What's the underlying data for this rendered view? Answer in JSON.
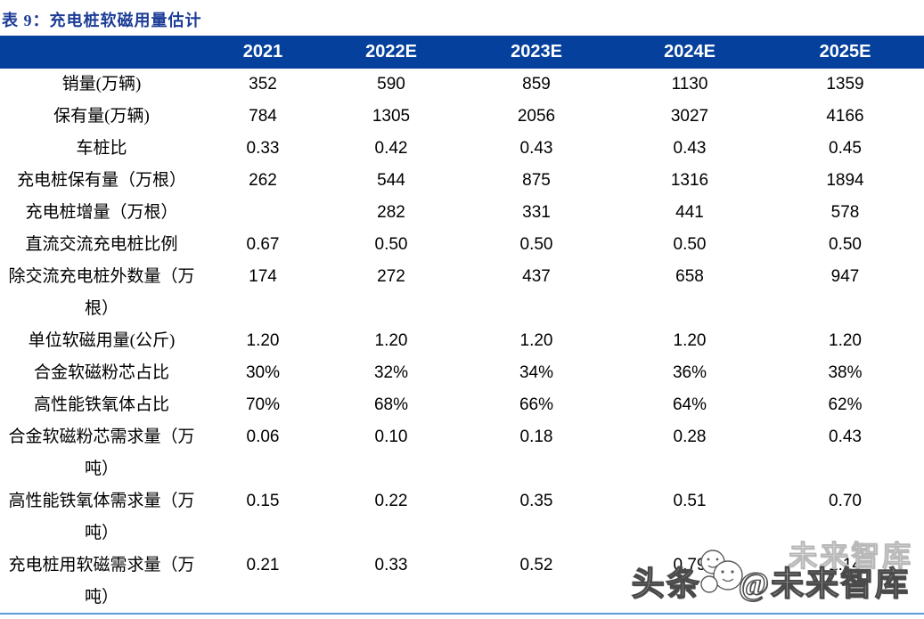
{
  "page": {
    "title": "表 9：充电桩软磁用量估计"
  },
  "table": {
    "header": [
      "2021",
      "2022E",
      "2023E",
      "2024E",
      "2025E"
    ],
    "rows": [
      {
        "label": "销量(万辆)",
        "values": [
          "352",
          "590",
          "859",
          "1130",
          "1359"
        ]
      },
      {
        "label": "保有量(万辆)",
        "values": [
          "784",
          "1305",
          "2056",
          "3027",
          "4166"
        ]
      },
      {
        "label": "车桩比",
        "values": [
          "0.33",
          "0.42",
          "0.43",
          "0.43",
          "0.45"
        ]
      },
      {
        "label": "充电桩保有量（万根）",
        "values": [
          "262",
          "544",
          "875",
          "1316",
          "1894"
        ]
      },
      {
        "label": "充电桩增量（万根）",
        "values": [
          "",
          "282",
          "331",
          "441",
          "578"
        ]
      },
      {
        "label": "直流交流充电桩比例",
        "values": [
          "0.67",
          "0.50",
          "0.50",
          "0.50",
          "0.50"
        ]
      },
      {
        "label": "除交流充电桩外数量（万根）",
        "values": [
          "174",
          "272",
          "437",
          "658",
          "947"
        ]
      },
      {
        "label": "单位软磁用量(公斤)",
        "values": [
          "1.20",
          "1.20",
          "1.20",
          "1.20",
          "1.20"
        ]
      },
      {
        "label": "合金软磁粉芯占比",
        "values": [
          "30%",
          "32%",
          "34%",
          "36%",
          "38%"
        ]
      },
      {
        "label": "高性能铁氧体占比",
        "values": [
          "70%",
          "68%",
          "66%",
          "64%",
          "62%"
        ]
      },
      {
        "label": "合金软磁粉芯需求量（万吨）",
        "values": [
          "0.06",
          "0.10",
          "0.18",
          "0.28",
          "0.43"
        ]
      },
      {
        "label": "高性能铁氧体需求量（万吨）",
        "values": [
          "0.15",
          "0.22",
          "0.35",
          "0.51",
          "0.70"
        ]
      },
      {
        "label": "充电桩用软磁需求量（万吨）",
        "values": [
          "0.21",
          "0.33",
          "0.52",
          "0.79",
          "1.14"
        ]
      }
    ]
  },
  "watermark": {
    "prefix": "头条",
    "suffix": "@未来智库",
    "ghost": "未来智库",
    "logo": "smiley-faces-logo"
  },
  "colors": {
    "title_blue": "#1c3c96",
    "header_bg": "#04409c",
    "header_text": "#ffffff",
    "bottom_rule": "#5b9bd5",
    "body_text": "#000000"
  }
}
